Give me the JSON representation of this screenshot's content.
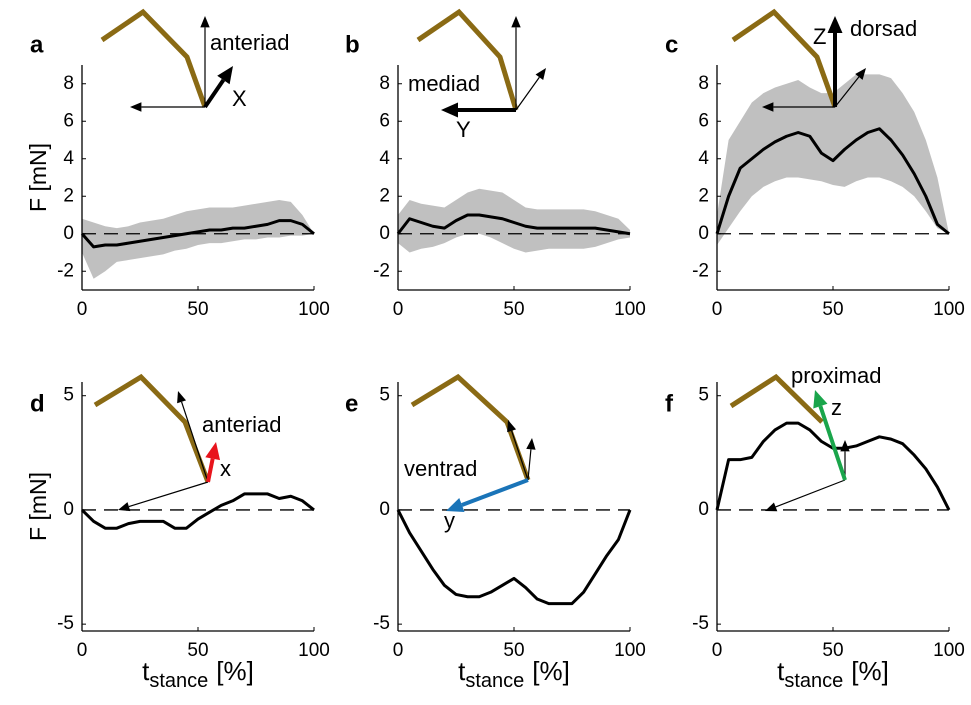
{
  "chart_data": [
    {
      "type": "line",
      "panel_label": "a",
      "ylabel": "F  [mN]",
      "color": "#000000",
      "band_color": "#c0c0c0",
      "x": [
        0,
        5,
        10,
        15,
        20,
        25,
        30,
        35,
        40,
        45,
        50,
        55,
        60,
        65,
        70,
        75,
        80,
        85,
        90,
        95,
        100
      ],
      "values": [
        0,
        -0.7,
        -0.6,
        -0.6,
        -0.5,
        -0.4,
        -0.3,
        -0.2,
        -0.1,
        0,
        0.1,
        0.2,
        0.2,
        0.3,
        0.3,
        0.4,
        0.5,
        0.7,
        0.7,
        0.5,
        0
      ],
      "band_upper": [
        0.8,
        0.6,
        0.4,
        0.3,
        0.4,
        0.6,
        0.7,
        0.8,
        1.0,
        1.2,
        1.3,
        1.4,
        1.4,
        1.4,
        1.5,
        1.6,
        1.7,
        1.8,
        1.7,
        1.0,
        0
      ],
      "band_lower": [
        -1.0,
        -2.4,
        -2.0,
        -1.5,
        -1.4,
        -1.3,
        -1.2,
        -1.1,
        -0.9,
        -0.8,
        -0.6,
        -0.5,
        -0.5,
        -0.4,
        -0.3,
        -0.3,
        -0.2,
        -0.2,
        -0.1,
        -0.1,
        0
      ],
      "xlim": [
        0,
        100
      ],
      "xticks": [
        0,
        50,
        100
      ],
      "ylim": [
        -3,
        9
      ],
      "yticks": [
        -2,
        0,
        2,
        4,
        6,
        8
      ],
      "hline": 0,
      "annotations": [
        {
          "text": "anteriad",
          "color": "#000000"
        },
        {
          "text": "X",
          "color": "#000000"
        }
      ]
    },
    {
      "type": "line",
      "panel_label": "b",
      "color": "#000000",
      "band_color": "#c0c0c0",
      "x": [
        0,
        5,
        10,
        15,
        20,
        25,
        30,
        35,
        40,
        45,
        50,
        55,
        60,
        65,
        70,
        75,
        80,
        85,
        90,
        95,
        100
      ],
      "values": [
        0,
        0.8,
        0.6,
        0.4,
        0.3,
        0.7,
        1.0,
        1.0,
        0.9,
        0.8,
        0.6,
        0.4,
        0.3,
        0.3,
        0.3,
        0.3,
        0.3,
        0.3,
        0.2,
        0.1,
        0
      ],
      "band_upper": [
        1.0,
        1.8,
        1.6,
        1.5,
        1.4,
        1.8,
        2.2,
        2.4,
        2.3,
        2.2,
        1.8,
        1.4,
        1.3,
        1.3,
        1.3,
        1.3,
        1.3,
        1.2,
        1.0,
        0.8,
        0.2
      ],
      "band_lower": [
        -0.5,
        -1.0,
        -0.8,
        -0.7,
        -0.5,
        -0.2,
        0,
        0,
        -0.2,
        -0.5,
        -0.8,
        -1.0,
        -0.9,
        -0.8,
        -0.8,
        -0.8,
        -0.8,
        -0.7,
        -0.5,
        -0.3,
        -0.2
      ],
      "xlim": [
        0,
        100
      ],
      "xticks": [
        0,
        50,
        100
      ],
      "ylim": [
        -3,
        9
      ],
      "yticks": [
        -2,
        0,
        2,
        4,
        6,
        8
      ],
      "hline": 0,
      "annotations": [
        {
          "text": "mediad",
          "color": "#000000"
        },
        {
          "text": "Y",
          "color": "#000000"
        }
      ]
    },
    {
      "type": "line",
      "panel_label": "c",
      "color": "#000000",
      "band_color": "#c0c0c0",
      "x": [
        0,
        5,
        10,
        15,
        20,
        25,
        30,
        35,
        40,
        45,
        50,
        55,
        60,
        65,
        70,
        75,
        80,
        85,
        90,
        95,
        100
      ],
      "values": [
        0,
        2.0,
        3.5,
        4.0,
        4.5,
        4.9,
        5.2,
        5.4,
        5.2,
        4.3,
        3.9,
        4.5,
        5.0,
        5.4,
        5.6,
        5.0,
        4.2,
        3.2,
        2.0,
        0.5,
        0
      ],
      "band_upper": [
        1.0,
        5.0,
        6.0,
        7.0,
        7.5,
        7.8,
        8.0,
        8.2,
        7.8,
        7.5,
        7.5,
        8.0,
        8.5,
        8.5,
        8.5,
        8.3,
        7.5,
        6.5,
        5.0,
        3.0,
        0
      ],
      "band_lower": [
        -0.6,
        0.3,
        1.2,
        2.0,
        2.5,
        2.8,
        3.0,
        3.0,
        2.9,
        2.8,
        2.6,
        2.5,
        2.8,
        3.0,
        3.0,
        2.8,
        2.5,
        2.0,
        1.2,
        0.3,
        0
      ],
      "xlim": [
        0,
        100
      ],
      "xticks": [
        0,
        50,
        100
      ],
      "ylim": [
        -3,
        9
      ],
      "yticks": [
        -2,
        0,
        2,
        4,
        6,
        8
      ],
      "hline": 0,
      "annotations": [
        {
          "text": "Z",
          "color": "#000000"
        },
        {
          "text": "dorsad",
          "color": "#000000"
        }
      ]
    },
    {
      "type": "line",
      "panel_label": "d",
      "ylabel": "F  [mN]",
      "xlabel": {
        "main": "t",
        "sub": "stance",
        "unit": "[%]"
      },
      "color": "#000000",
      "x": [
        0,
        5,
        10,
        15,
        20,
        25,
        30,
        35,
        40,
        45,
        50,
        55,
        60,
        65,
        70,
        75,
        80,
        85,
        90,
        95,
        100
      ],
      "values": [
        0,
        -0.5,
        -0.8,
        -0.8,
        -0.6,
        -0.5,
        -0.5,
        -0.5,
        -0.8,
        -0.8,
        -0.4,
        -0.1,
        0.2,
        0.4,
        0.7,
        0.7,
        0.7,
        0.5,
        0.6,
        0.4,
        0
      ],
      "xlim": [
        0,
        100
      ],
      "xticks": [
        0,
        50,
        100
      ],
      "ylim": [
        -5.3,
        5.6
      ],
      "yticks": [
        -5,
        0,
        5
      ],
      "hline": 0,
      "annotations": [
        {
          "text": "anteriad",
          "color": "#e8141c"
        },
        {
          "text": "x",
          "color": "#e8141c"
        }
      ]
    },
    {
      "type": "line",
      "panel_label": "e",
      "xlabel": {
        "main": "t",
        "sub": "stance",
        "unit": "[%]"
      },
      "color": "#000000",
      "x": [
        0,
        5,
        10,
        15,
        20,
        25,
        30,
        35,
        40,
        45,
        50,
        55,
        60,
        65,
        70,
        75,
        80,
        85,
        90,
        95,
        100
      ],
      "values": [
        0,
        -1.0,
        -1.8,
        -2.6,
        -3.3,
        -3.7,
        -3.8,
        -3.8,
        -3.6,
        -3.3,
        -3.0,
        -3.4,
        -3.9,
        -4.1,
        -4.1,
        -4.1,
        -3.6,
        -2.8,
        -2.0,
        -1.3,
        0
      ],
      "xlim": [
        0,
        100
      ],
      "xticks": [
        0,
        50,
        100
      ],
      "ylim": [
        -5.3,
        5.6
      ],
      "yticks": [
        -5,
        0,
        5
      ],
      "hline": 0,
      "annotations": [
        {
          "text": "ventrad",
          "color": "#1a74b8"
        },
        {
          "text": "y",
          "color": "#1a74b8"
        }
      ]
    },
    {
      "type": "line",
      "panel_label": "f",
      "xlabel": {
        "main": "t",
        "sub": "stance",
        "unit": "[%]"
      },
      "color": "#000000",
      "x": [
        0,
        5,
        10,
        15,
        20,
        25,
        30,
        35,
        40,
        45,
        50,
        55,
        60,
        65,
        70,
        75,
        80,
        85,
        90,
        95,
        100
      ],
      "values": [
        0,
        2.2,
        2.2,
        2.3,
        3.0,
        3.5,
        3.8,
        3.8,
        3.5,
        3.0,
        2.7,
        2.7,
        2.8,
        3.0,
        3.2,
        3.1,
        2.9,
        2.4,
        1.8,
        1.0,
        0
      ],
      "xlim": [
        0,
        100
      ],
      "xticks": [
        0,
        50,
        100
      ],
      "ylim": [
        -5.3,
        5.6
      ],
      "yticks": [
        -5,
        0,
        5
      ],
      "hline": 0,
      "annotations": [
        {
          "text": "proximad",
          "color": "#1aa54b"
        },
        {
          "text": "z",
          "color": "#1aa54b"
        }
      ]
    }
  ]
}
